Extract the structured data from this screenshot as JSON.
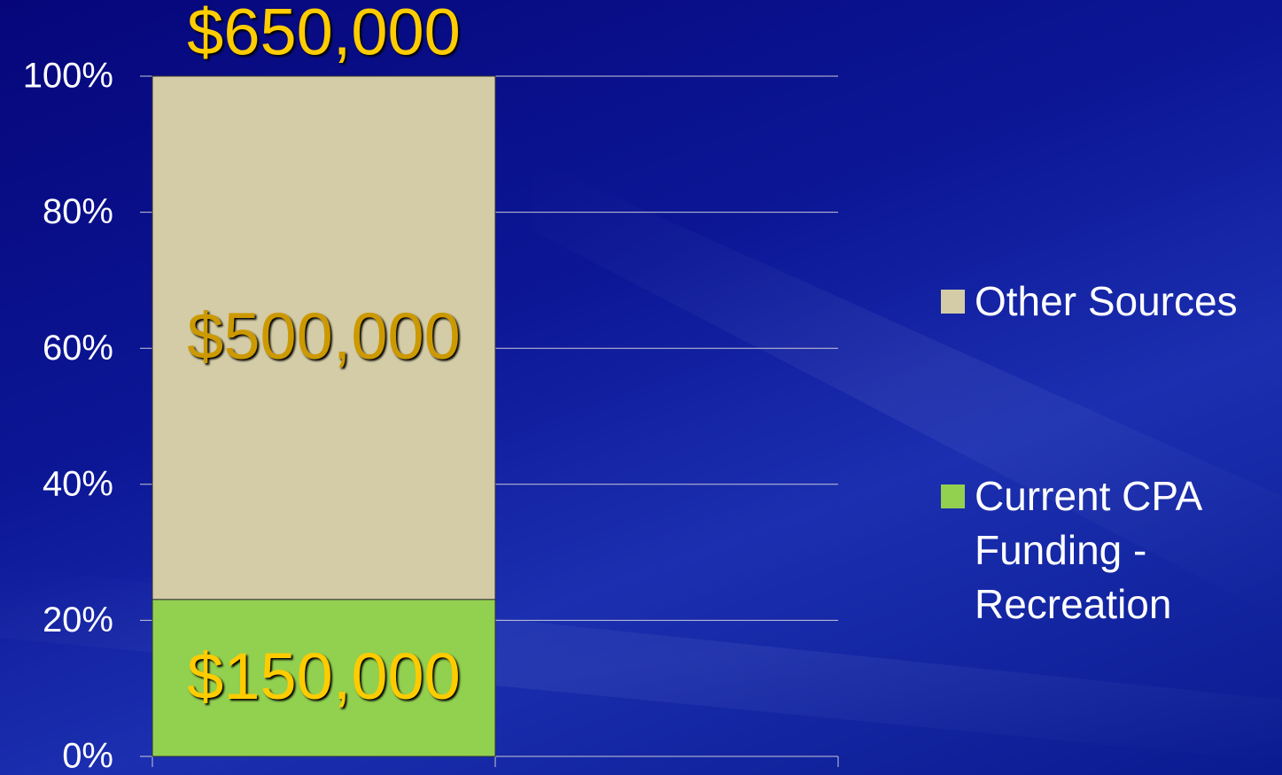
{
  "chart_data": {
    "type": "bar",
    "stacking": "percent",
    "annotation": "$650,000",
    "annotation_color": "#ffcc00",
    "categories": [
      null,
      null
    ],
    "series": [
      {
        "name": "Current CPA Funding - Recreation",
        "color": "#92d050",
        "label_color": "#ffcc00",
        "values": [
          150000,
          null
        ],
        "value_labels": [
          "$150,000",
          null
        ]
      },
      {
        "name": "Other Sources",
        "color": "#d4cca6",
        "label_color": "#cc9900",
        "values": [
          500000,
          null
        ],
        "value_labels": [
          "$500,000",
          null
        ]
      }
    ],
    "ylim": [
      0,
      100
    ],
    "yticks": [
      {
        "value": 0,
        "label": "0%"
      },
      {
        "value": 20,
        "label": "20%"
      },
      {
        "value": 40,
        "label": "40%"
      },
      {
        "value": 60,
        "label": "60%"
      },
      {
        "value": 80,
        "label": "80%"
      },
      {
        "value": 100,
        "label": "100%"
      }
    ],
    "grid": true,
    "legend": "right"
  }
}
